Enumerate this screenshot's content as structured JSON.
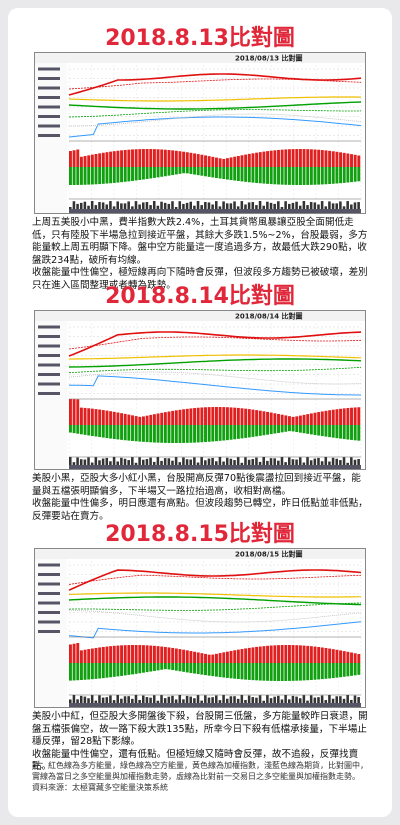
{
  "sections": [
    {
      "title": "2018.8.13比對圖",
      "chart_header": "2018/08/13 比對圖",
      "paragraphs": [
        "上周五美股小中黑，費半指數大跌2.4%，土耳其貨幣風暴讓亞股全面開低走低，只有陸股下半場急拉到接近平盤，其餘大多跌1.5%~2%，台股最弱，多方能量較上周五明顯下降。盤中空方能量這一度追過多方，故最低大跌290點，收盤跌234點，破所有均線。",
        "收盤能量中性偏空，極短線再向下隨時會反彈，但波段多方趨勢已被破壞，差別只在進入區間整理或者轉為跌勢。"
      ]
    },
    {
      "title": "2018.8.14比對圖",
      "chart_header": "2018/08/14 比對圖",
      "paragraphs": [
        "美股小黑，亞股大多小紅小黑，台股開高反彈70點後震盪拉回到接近平盤，能量與五檔張明顯偏多，下半場又一路拉抬過高，收相對高檔。",
        "收盤能量中性偏多，明日應還有高點。但波段趨勢已轉空，昨日低點並非低點，反彈要站在賣方。"
      ]
    },
    {
      "title": "2018.8.15比對圖",
      "chart_header": "2018/08/15 比對圖",
      "paragraphs": [
        "美股小中紅，但亞股大多開盤後下殺，台股開三低盤，多方能量較昨日衰退，開盤五檔張偏空，故一路下殺大跌135點，所幸今日下殺有低檔承接量，下半場止穩反彈，留28點下影線。",
        "收盤能量中性偏空，還有低點。但極短線又隨時會反彈，故不追殺，反彈找賣點。"
      ]
    }
  ],
  "note": "註：紅色線為多方能量，綠色線為空方能量，黃色線為加權指數，淺藍色線為期貨，比對圖中，實線為當日之多空能量與加權指數走勢，虛線為比對前一交易日之多空能量與加權指數走勢。",
  "source": "資料來源：太極寶藏多空能量決策系統"
}
